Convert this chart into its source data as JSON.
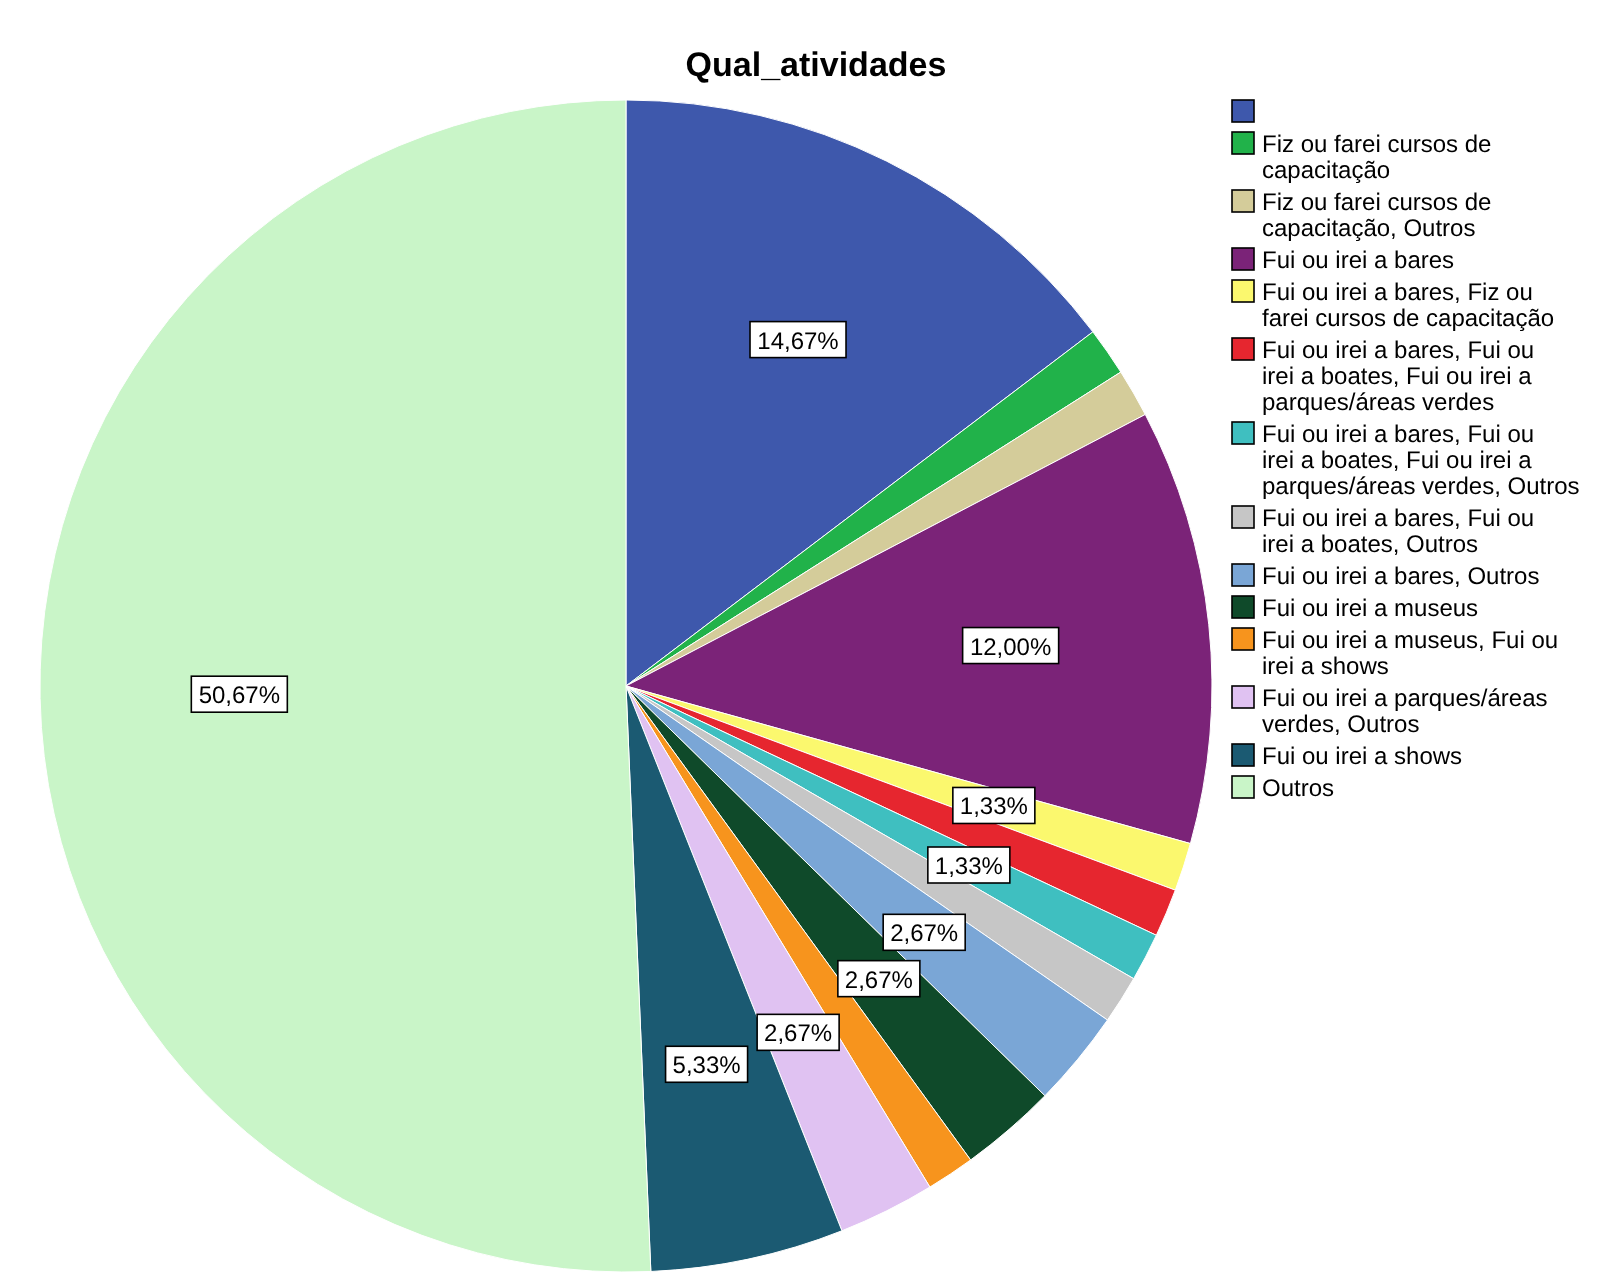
{
  "chart_data": {
    "type": "pie",
    "title": "Qual_atividades",
    "categories": [
      null,
      "Fiz ou farei cursos de capacitação",
      "Fiz ou farei cursos de capacitação, Outros",
      "Fui ou irei a bares",
      "Fui ou irei a bares, Fiz ou farei cursos de capacitação",
      "Fui ou irei a bares, Fui ou irei a boates, Fui ou irei a parques/áreas verdes",
      "Fui ou irei a bares, Fui ou irei a boates, Fui ou irei a parques/áreas verdes, Outros",
      "Fui ou irei a bares, Fui ou irei a boates, Outros",
      "Fui ou irei a bares, Outros",
      "Fui ou irei a museus",
      "Fui ou irei a museus, Fui ou irei a shows",
      "Fui ou irei a parques/áreas verdes, Outros",
      "Fui ou irei a shows",
      "Outros"
    ],
    "values": [
      14.67,
      1.33,
      1.33,
      12.0,
      1.33,
      1.33,
      1.33,
      1.33,
      2.67,
      2.67,
      1.33,
      2.67,
      5.33,
      50.67
    ],
    "value_labels": [
      "14,67%",
      null,
      null,
      "12,00%",
      "1,33%",
      null,
      "1,33%",
      null,
      "2,67%",
      "2,67%",
      null,
      "2,67%",
      "5,33%",
      "50,67%"
    ],
    "colors": [
      "#3e58ac",
      "#21b24a",
      "#d4cc9a",
      "#7b2378",
      "#fbf86e",
      "#e6262f",
      "#3fbfc0",
      "#c6c6c6",
      "#7aa6d6",
      "#0f4a2a",
      "#f7941d",
      "#e0c2f2",
      "#1b5a72",
      "#c9f5c8"
    ],
    "legend": "right"
  }
}
